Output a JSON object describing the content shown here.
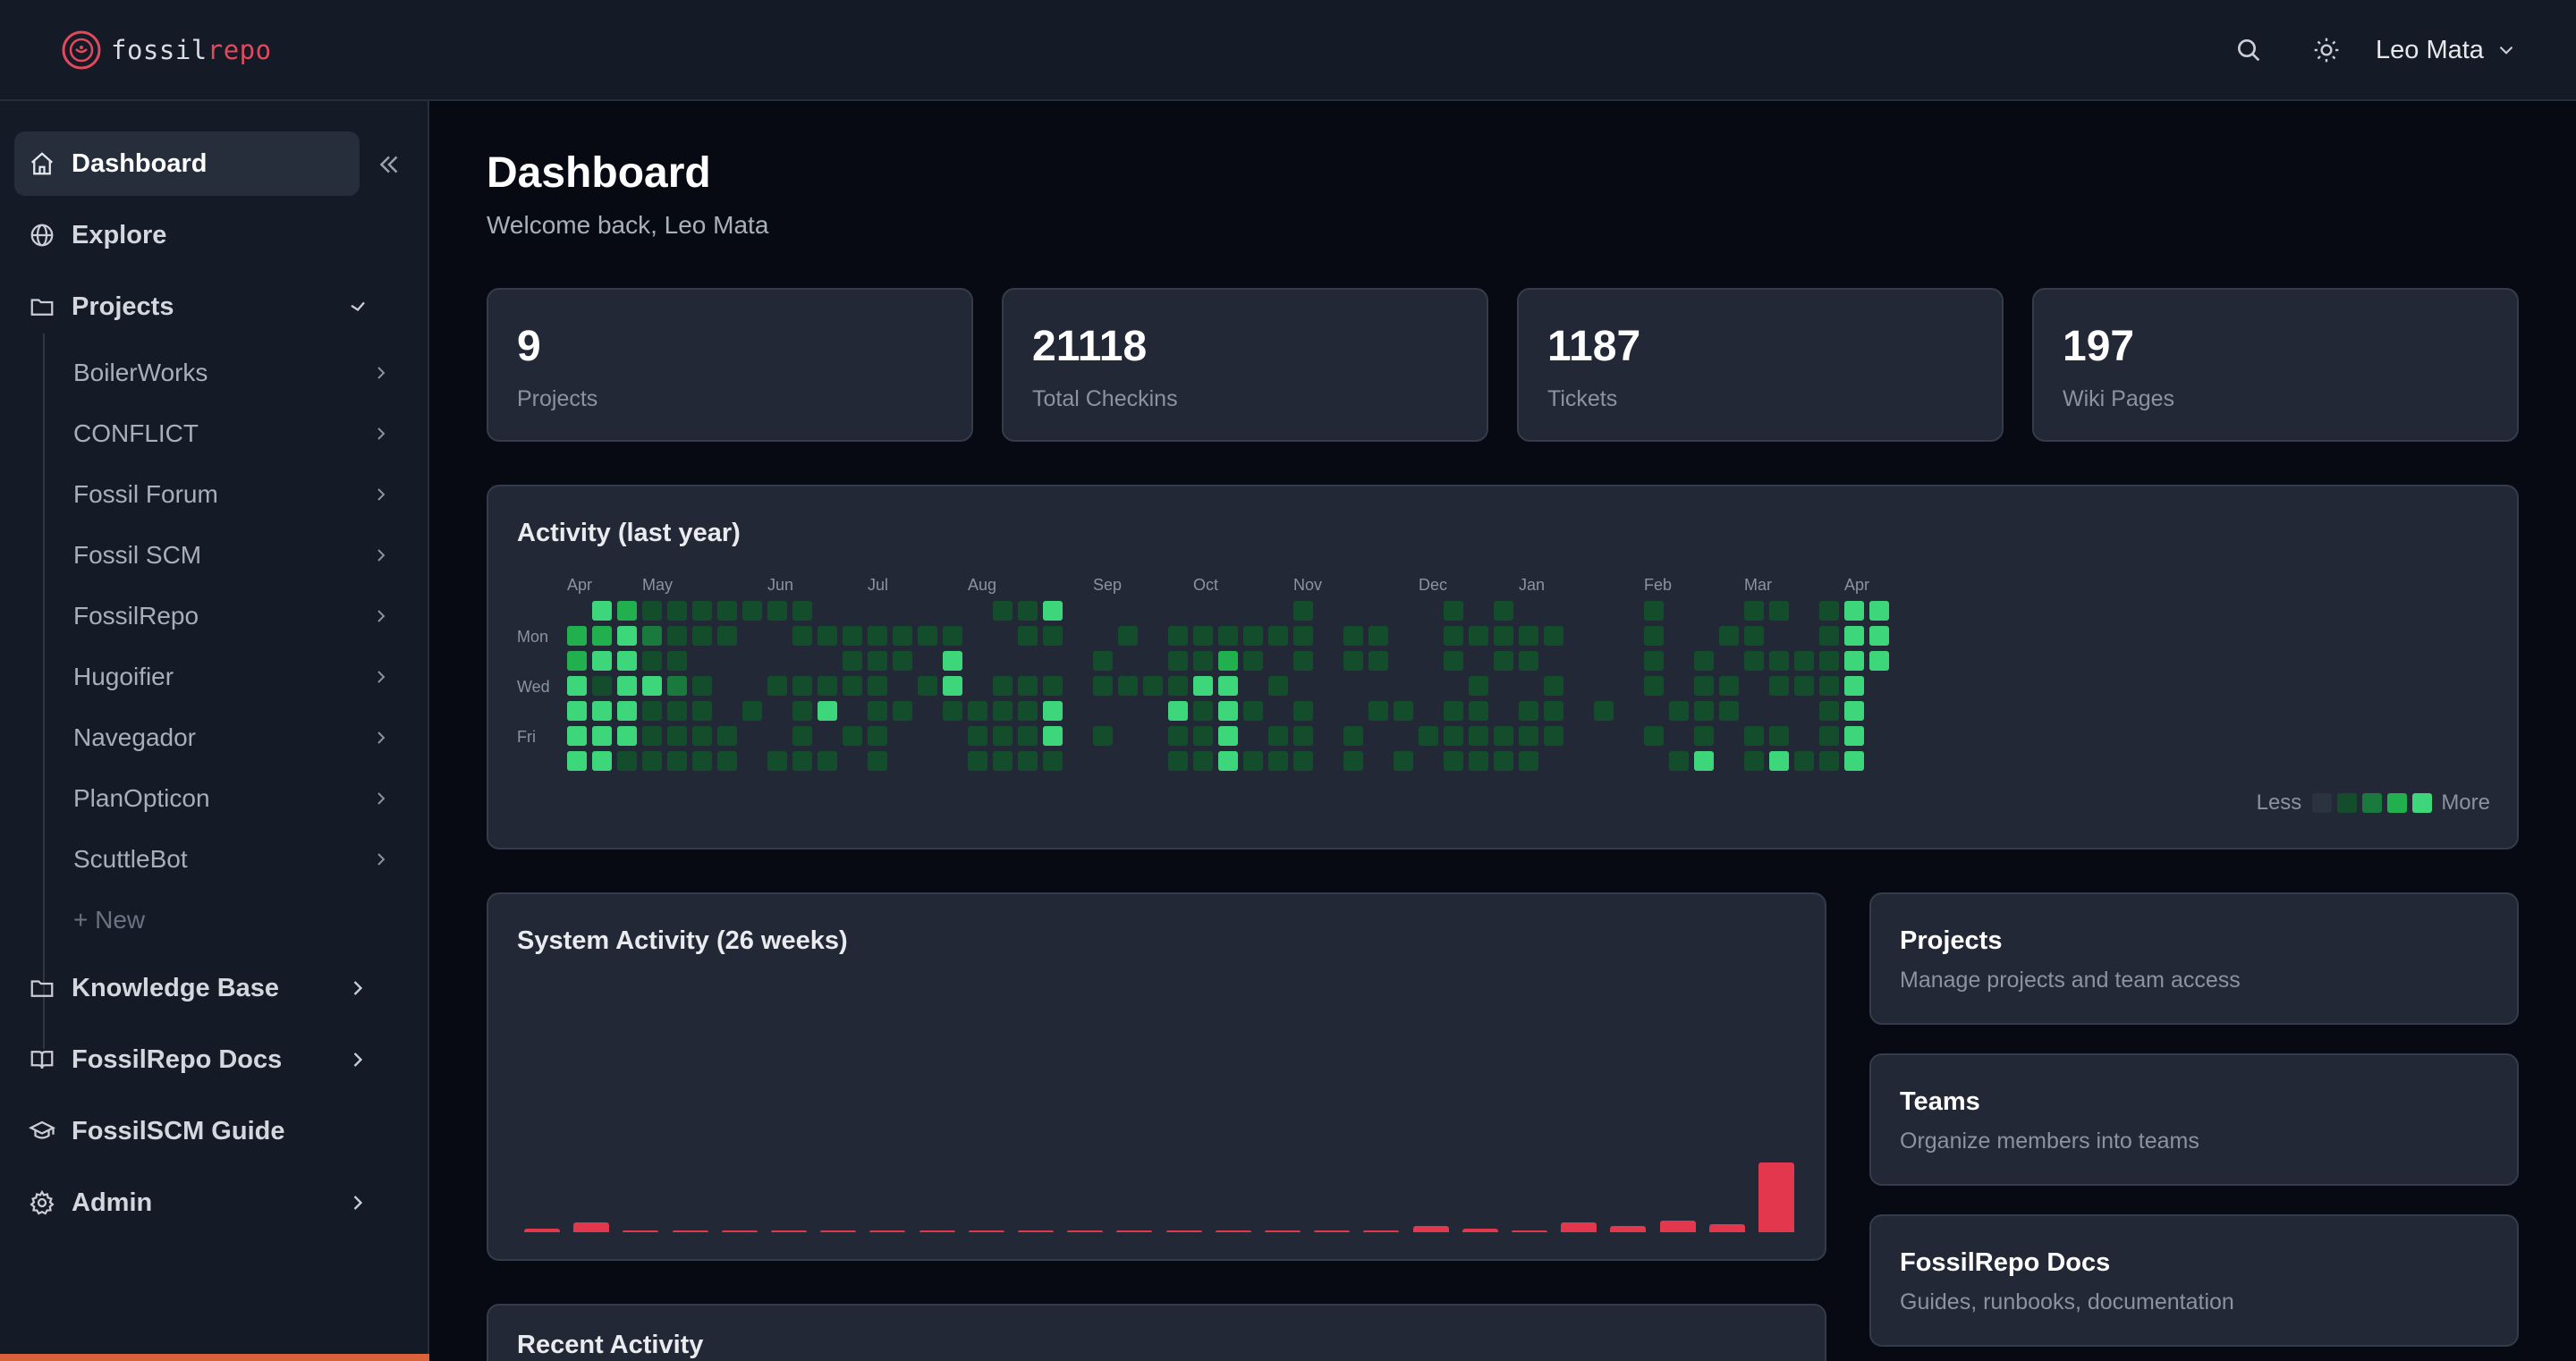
{
  "header": {
    "logo_part1": "fossil",
    "logo_part2": "repo",
    "user_name": "Leo Mata",
    "icons": [
      "search-icon",
      "theme-toggle-sun-icon",
      "chevron-down-icon"
    ],
    "accent_color": "#e04a5c"
  },
  "sidebar": {
    "items": [
      {
        "label": "Dashboard",
        "icon": "home-icon",
        "active": true
      },
      {
        "label": "Explore",
        "icon": "globe-icon"
      },
      {
        "label": "Projects",
        "icon": "folder-icon",
        "expanded": true
      },
      {
        "label": "Knowledge Base",
        "icon": "folder-icon"
      },
      {
        "label": "FossilRepo Docs",
        "icon": "book-icon"
      },
      {
        "label": "FossilSCM Guide",
        "icon": "graduation-cap-icon"
      },
      {
        "label": "Admin",
        "icon": "gear-icon"
      }
    ],
    "projects": [
      "BoilerWorks",
      "CONFLICT",
      "Fossil Forum",
      "Fossil SCM",
      "FossilRepo",
      "Hugoifier",
      "Navegador",
      "PlanOpticon",
      "ScuttleBot"
    ],
    "new_label": "+ New"
  },
  "main": {
    "title": "Dashboard",
    "welcome": "Welcome back, Leo Mata",
    "stats": [
      {
        "value": "9",
        "label": "Projects"
      },
      {
        "value": "21118",
        "label": "Total Checkins"
      },
      {
        "value": "1187",
        "label": "Tickets"
      },
      {
        "value": "197",
        "label": "Wiki Pages"
      }
    ],
    "activity": {
      "title": "Activity (last year)",
      "months": [
        "Apr",
        "May",
        "Jun",
        "Jul",
        "Aug",
        "Sep",
        "Oct",
        "Nov",
        "Dec",
        "Jan",
        "Feb",
        "Mar",
        "Apr"
      ],
      "month_weeks": [
        0,
        3,
        8,
        12,
        16,
        21,
        25,
        29,
        34,
        38,
        43,
        47,
        51
      ],
      "days": [
        "Mon",
        "Wed",
        "Fri"
      ],
      "legend_less": "Less",
      "legend_more": "More",
      "levels_colors": [
        "#2b3240",
        "#134d2c",
        "#1a7a3d",
        "#22b04f",
        "#3ed67a"
      ],
      "grid": [
        "0334444",
        "4341444",
        "3444441",
        "1214111",
        "1112111",
        "1101111",
        "1100011",
        "1000100",
        "1001001",
        "1101111",
        "0101401",
        "0111010",
        "0111111",
        "0110100",
        "0101000",
        "0144100",
        "0000111",
        "1001111",
        "1101111",
        "4101441",
        "0000000",
        "0011010",
        "0101000",
        "0001000",
        "0111411",
        "0114111",
        "0134444",
        "0110101",
        "0101011",
        "1110111",
        "0000000",
        "0110011",
        "0110100",
        "0000101",
        "0000010",
        "1110111",
        "0101111",
        "1110011",
        "0110111",
        "0101110",
        "0000000",
        "0000100",
        "0000000",
        "1111010",
        "0000101",
        "0011114",
        "0101100",
        "1110011",
        "1011014",
        "0011001",
        "1111111",
        "4444444",
        "4440000"
      ]
    },
    "system_activity": {
      "title": "System Activity (26 weeks)",
      "chart_data": {
        "type": "bar",
        "title": "System Activity (26 weeks)",
        "values": [
          2,
          6,
          1,
          1,
          0,
          0,
          1,
          1,
          1,
          1,
          1,
          1,
          1,
          1,
          0,
          0,
          0,
          1,
          4,
          2,
          1,
          6,
          4,
          7,
          5,
          42
        ],
        "color": "#e2374d",
        "xlabel": "",
        "ylabel": ""
      }
    },
    "recent_activity": {
      "title": "Recent Activity"
    },
    "links": [
      {
        "title": "Projects",
        "desc": "Manage projects and team access"
      },
      {
        "title": "Teams",
        "desc": "Organize members into teams"
      },
      {
        "title": "FossilRepo Docs",
        "desc": "Guides, runbooks, documentation"
      }
    ]
  }
}
